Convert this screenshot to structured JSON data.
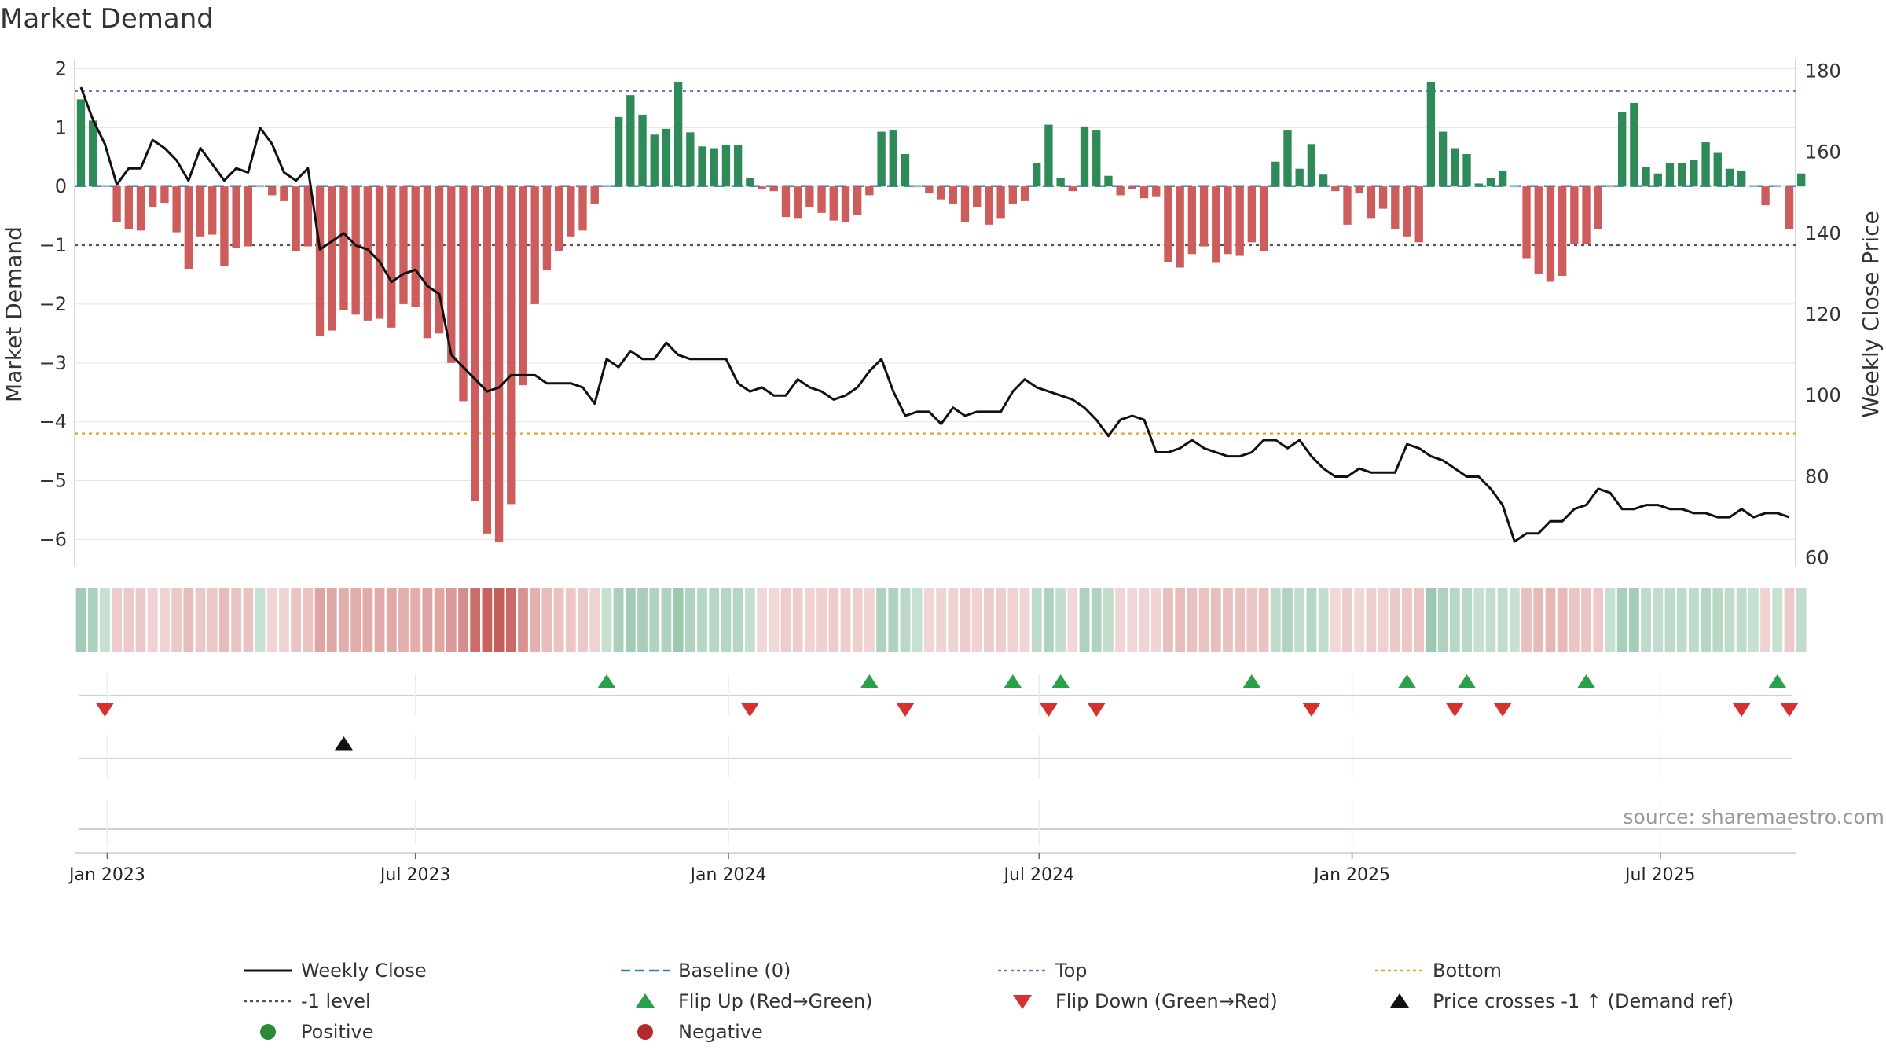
{
  "chart_data": {
    "type": "bar",
    "title": "Market Demand",
    "ylabel": "Market Demand",
    "y2label": "Weekly Close Price",
    "ylim": [
      -6.45,
      2.1
    ],
    "y2lim": [
      58,
      182
    ],
    "yticks": [
      2,
      1,
      0,
      -1,
      -2,
      -3,
      -4,
      -5,
      -6
    ],
    "ytick_labels": [
      "2",
      "1",
      "0",
      "−1",
      "−2",
      "−3",
      "−4",
      "−5",
      "−6"
    ],
    "y2ticks": [
      180,
      160,
      140,
      120,
      100,
      80,
      60
    ],
    "y2tick_labels": [
      "180",
      "160",
      "140",
      "120",
      "100",
      "80",
      "60"
    ],
    "x_week_range": [
      0,
      143
    ],
    "xticks": [
      {
        "week": 2.2,
        "label": "Jan 2023"
      },
      {
        "week": 28,
        "label": "Jul 2023"
      },
      {
        "week": 54.2,
        "label": "Jan 2024"
      },
      {
        "week": 80.2,
        "label": "Jul 2024"
      },
      {
        "week": 106.4,
        "label": "Jan 2025"
      },
      {
        "week": 132.2,
        "label": "Jul 2025"
      }
    ],
    "reference_lines": [
      {
        "name": "Top",
        "value": 1.62,
        "color": "#7b6fd6"
      },
      {
        "name": "-1 level",
        "value": -1.0,
        "color": "#555555"
      },
      {
        "name": "Bottom",
        "value": -4.2,
        "color": "#e0a020"
      },
      {
        "name": "Baseline (0)",
        "value": 0,
        "color": "#2e7db3"
      }
    ],
    "series": [
      {
        "name": "Market Demand",
        "values": [
          1.48,
          1.12,
          0,
          -0.6,
          -0.72,
          -0.75,
          -0.35,
          -0.28,
          -0.78,
          -1.4,
          -0.85,
          -0.82,
          -1.35,
          -1.05,
          -1.02,
          0,
          -0.15,
          -0.25,
          -1.1,
          -1.02,
          -2.55,
          -2.45,
          -2.1,
          -2.18,
          -2.28,
          -2.25,
          -2.4,
          -2.0,
          -2.05,
          -2.58,
          -2.5,
          -3.0,
          -3.65,
          -5.35,
          -5.9,
          -6.05,
          -5.4,
          -3.38,
          -2.0,
          -1.42,
          -1.1,
          -0.85,
          -0.75,
          -0.3,
          0,
          1.18,
          1.55,
          1.22,
          0.88,
          0.98,
          1.78,
          0.92,
          0.68,
          0.65,
          0.7,
          0.7,
          0.15,
          -0.05,
          -0.08,
          -0.52,
          -0.55,
          -0.35,
          -0.45,
          -0.58,
          -0.6,
          -0.48,
          -0.15,
          0.93,
          0.95,
          0.55,
          0,
          -0.12,
          -0.22,
          -0.3,
          -0.6,
          -0.35,
          -0.65,
          -0.55,
          -0.3,
          -0.25,
          0.4,
          1.05,
          0.15,
          -0.08,
          1.02,
          0.95,
          0.18,
          -0.15,
          -0.05,
          -0.2,
          -0.18,
          -1.28,
          -1.38,
          -1.15,
          -1.02,
          -1.3,
          -1.15,
          -1.18,
          -0.95,
          -1.1,
          0.42,
          0.95,
          0.3,
          0.72,
          0.2,
          -0.08,
          -0.65,
          -0.12,
          -0.55,
          -0.38,
          -0.72,
          -0.85,
          -0.95,
          1.78,
          0.93,
          0.65,
          0.55,
          0.05,
          0.15,
          0.27,
          0,
          -1.22,
          -1.48,
          -1.62,
          -1.52,
          -0.98,
          -0.98,
          -0.72,
          0,
          1.27,
          1.42,
          0.33,
          0.22,
          0.4,
          0.4,
          0.45,
          0.75,
          0.57,
          0.3,
          0.27,
          0,
          -0.32,
          0,
          -0.72,
          0.22
        ]
      },
      {
        "name": "Weekly Close",
        "values": [
          176,
          168,
          162,
          152,
          156,
          156,
          163,
          161,
          158,
          153,
          161,
          157,
          153,
          156,
          155,
          166,
          162,
          155,
          153,
          156,
          136,
          138,
          140,
          137,
          136,
          133,
          128,
          130,
          131,
          127,
          125,
          110,
          107,
          104,
          101,
          102,
          105,
          105,
          105,
          103,
          103,
          103,
          102,
          98,
          109,
          107,
          111,
          109,
          109,
          113,
          110,
          109,
          109,
          109,
          109,
          103,
          101,
          102,
          100,
          100,
          104,
          102,
          101,
          99,
          100,
          102,
          106,
          109,
          101,
          95,
          96,
          96,
          93,
          97,
          95,
          96,
          96,
          96,
          101,
          104,
          102,
          101,
          100,
          99,
          97,
          94,
          90,
          94,
          95,
          94,
          86,
          86,
          87,
          89,
          87,
          86,
          85,
          85,
          86,
          89,
          89,
          87,
          89,
          85,
          82,
          80,
          80,
          82,
          81,
          81,
          81,
          88,
          87,
          85,
          84,
          82,
          80,
          80,
          77,
          73,
          64,
          66,
          66,
          69,
          69,
          72,
          73,
          77,
          76,
          72,
          72,
          73,
          73,
          72,
          72,
          71,
          71,
          70,
          70,
          72,
          70,
          71,
          71,
          70
        ]
      }
    ],
    "flip_up_weeks": [
      44,
      66,
      78,
      82,
      98,
      111,
      116,
      126,
      142
    ],
    "flip_down_weeks": [
      2,
      56,
      69,
      81,
      85,
      103,
      115,
      119,
      139,
      143
    ],
    "price_cross_weeks": [
      22
    ],
    "source_note": "source: sharemaestro.com",
    "legend": [
      {
        "label": "Weekly Close",
        "kind": "line-solid",
        "color": "#111111"
      },
      {
        "label": "Baseline (0)",
        "kind": "line-dash",
        "color": "#2e7db3"
      },
      {
        "label": "Top",
        "kind": "line-dot",
        "color": "#7b6fd6"
      },
      {
        "label": "Bottom",
        "kind": "line-dot",
        "color": "#e0a020"
      },
      {
        "label": "-1 level",
        "kind": "line-dot",
        "color": "#555555"
      },
      {
        "label": "Flip Up (Red→Green)",
        "kind": "triangle-up",
        "color": "#2aa04a"
      },
      {
        "label": "Flip Down (Green→Red)",
        "kind": "triangle-down",
        "color": "#d63030"
      },
      {
        "label": "Price crosses -1 ↑ (Demand ref)",
        "kind": "triangle-up",
        "color": "#111111"
      },
      {
        "label": "Positive",
        "kind": "circle",
        "color": "#2a8a3a"
      },
      {
        "label": "Negative",
        "kind": "circle",
        "color": "#b22a2a"
      }
    ],
    "colors": {
      "positive_bar": "#2e8b57",
      "negative_bar": "#cd5c5c",
      "price_line": "#111111",
      "heat_positive": "#2e8b57",
      "heat_negative": "#c0504d"
    }
  }
}
